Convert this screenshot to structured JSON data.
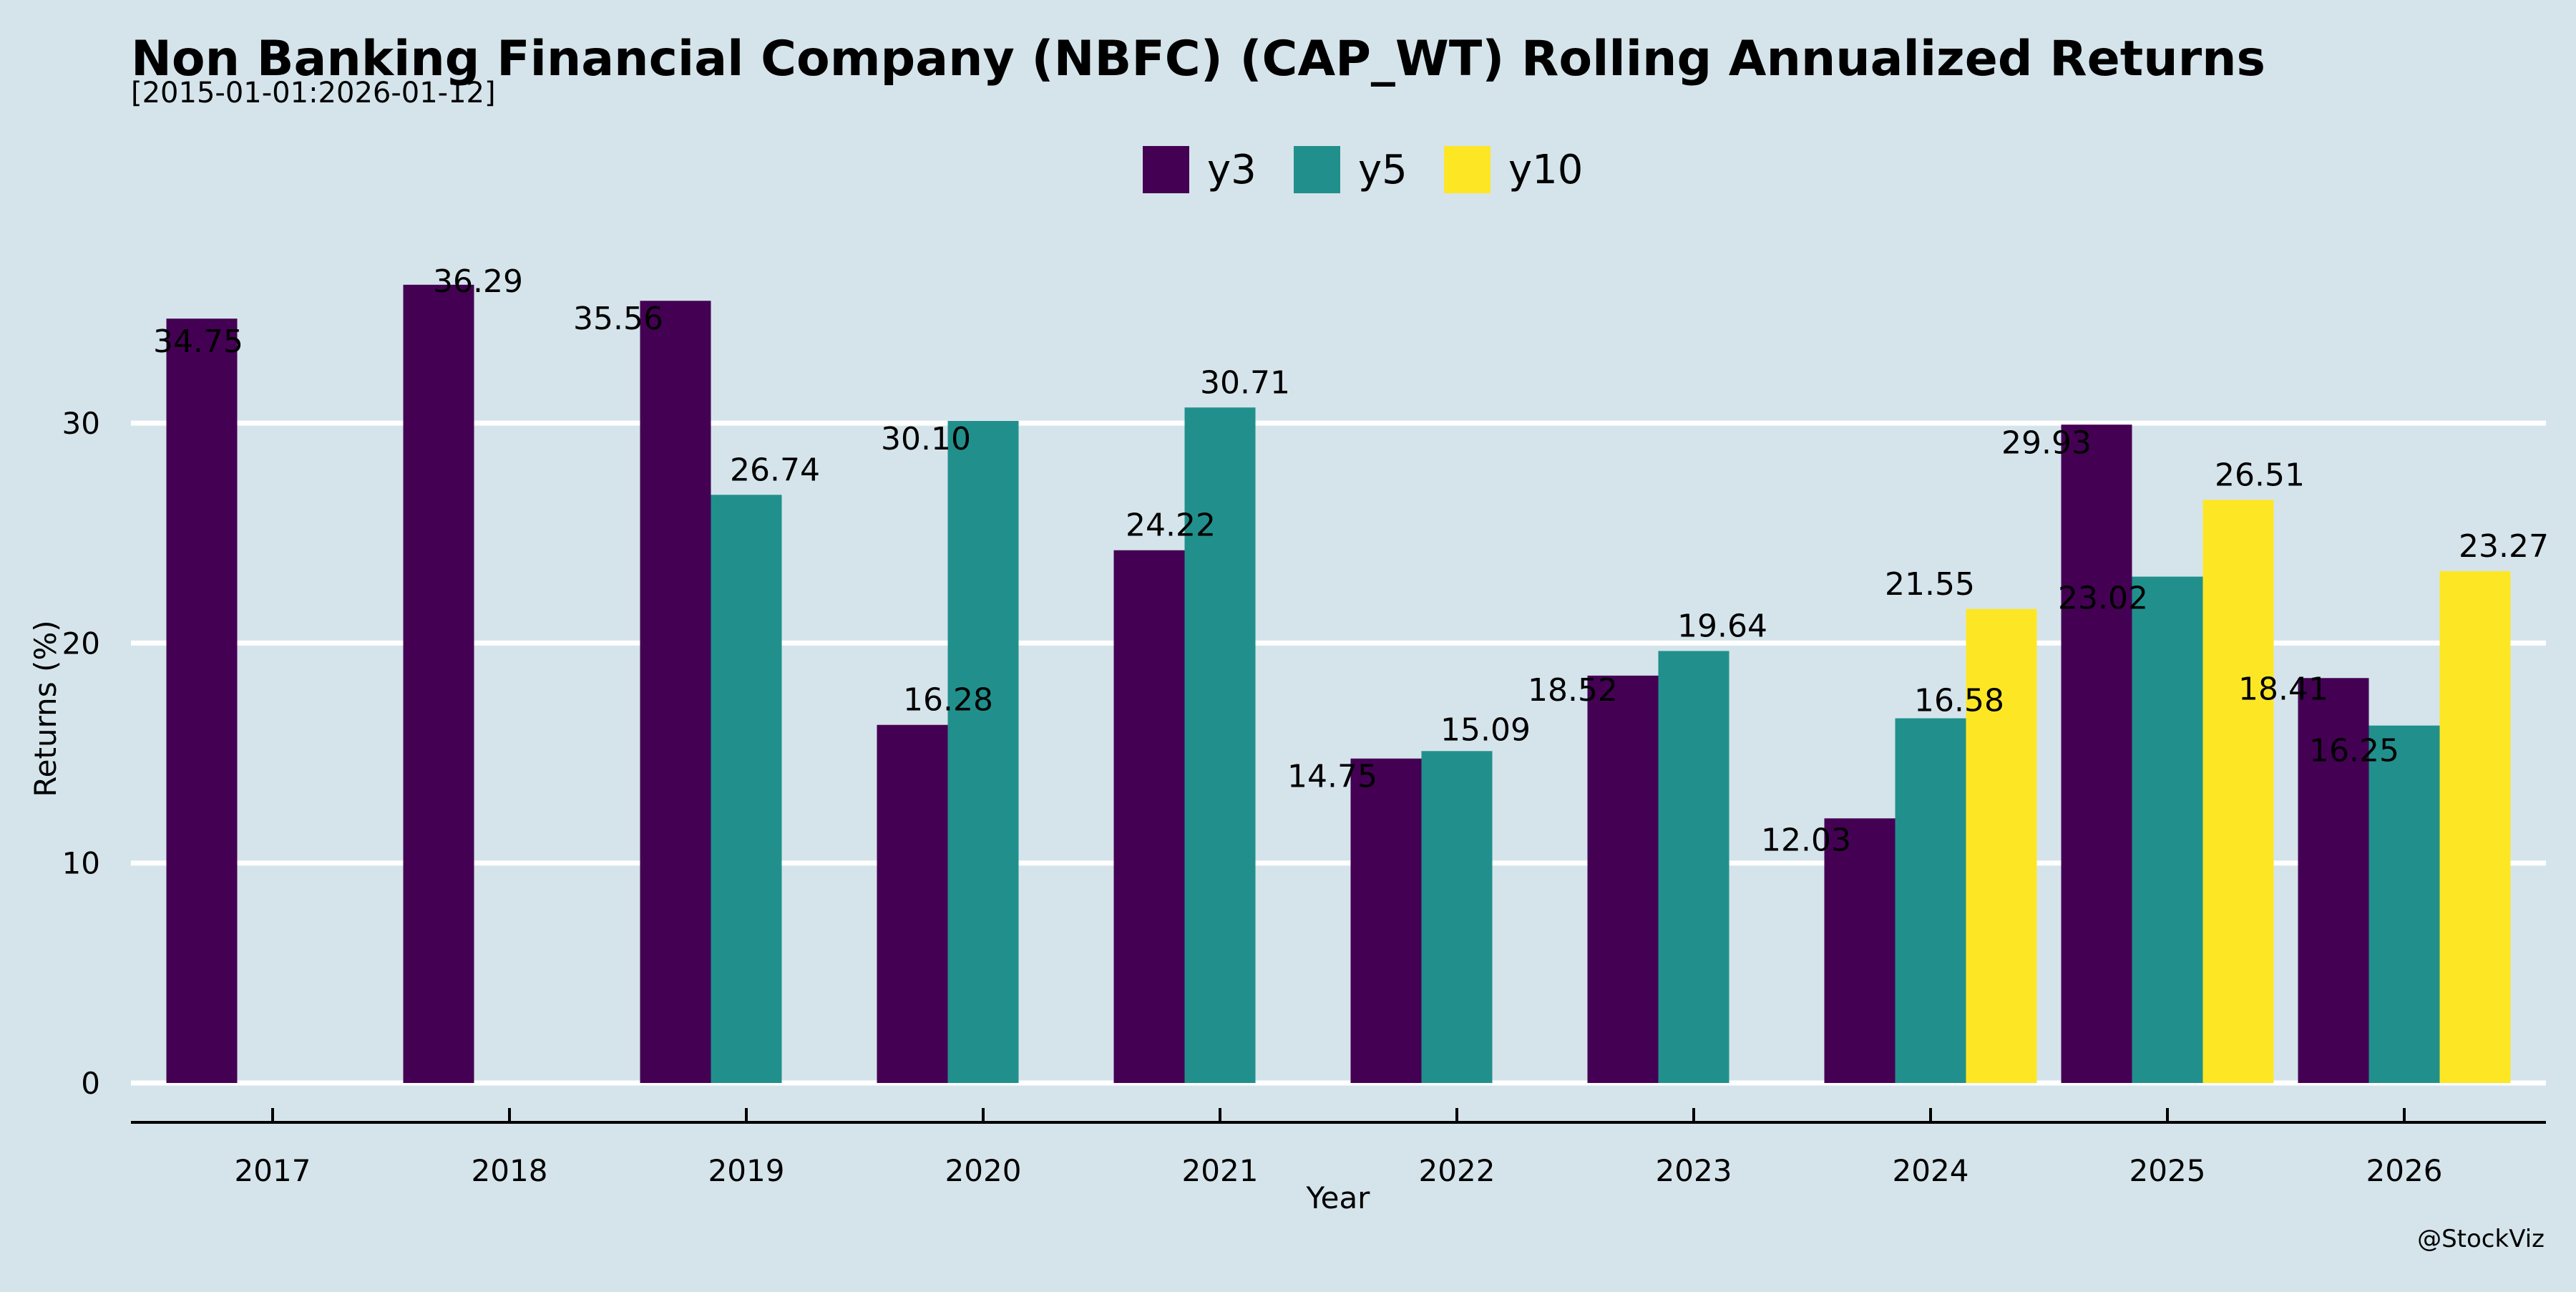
{
  "chart_data": {
    "type": "bar",
    "title": "Non Banking Financial Company (NBFC) (CAP_WT) Rolling Annualized Returns",
    "subtitle": "[2015-01-01:2026-01-12]",
    "xlabel": "Year",
    "ylabel": "Returns (%)",
    "categories": [
      "2017",
      "2018",
      "2019",
      "2020",
      "2021",
      "2022",
      "2023",
      "2024",
      "2025",
      "2026"
    ],
    "series": [
      {
        "name": "y3",
        "color": "#440154",
        "values": [
          34.75,
          36.29,
          35.56,
          16.28,
          24.22,
          14.75,
          18.52,
          12.03,
          29.93,
          18.41
        ]
      },
      {
        "name": "y5",
        "color": "#21908c",
        "values": [
          null,
          null,
          26.74,
          30.1,
          30.71,
          15.09,
          19.64,
          16.58,
          23.02,
          16.25
        ]
      },
      {
        "name": "y10",
        "color": "#fde725",
        "values": [
          null,
          null,
          null,
          null,
          null,
          null,
          null,
          21.55,
          26.51,
          23.27
        ]
      }
    ],
    "yticks": [
      0,
      10,
      20,
      30
    ],
    "ylim": [
      -1.8,
      38.5
    ],
    "grid": "horizontal",
    "legend_position": "top-center",
    "watermark": "@StockViz"
  }
}
